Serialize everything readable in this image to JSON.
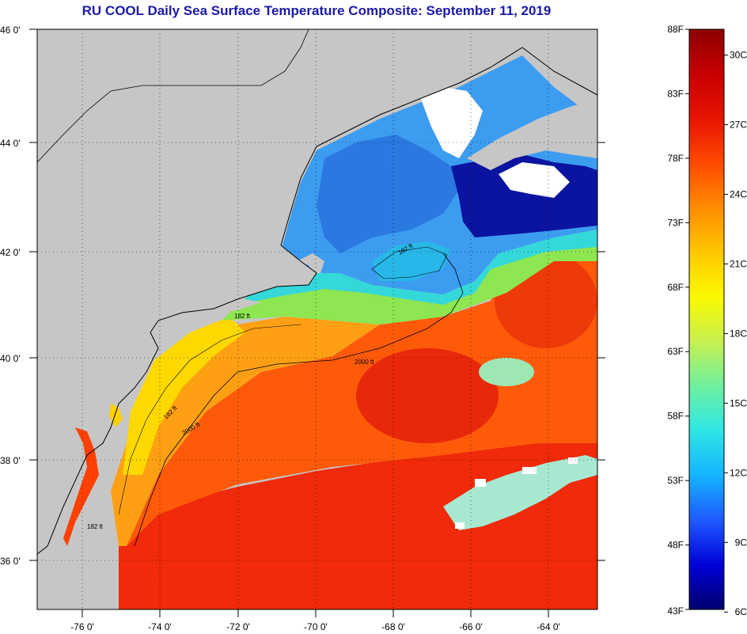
{
  "title": "RU COOL Daily Sea Surface Temperature Composite:  September 11, 2019",
  "colors": {
    "land": "#c6c6c6",
    "cloud": "#ffffff",
    "coast": "#000000",
    "title": "#1a1aa8"
  },
  "axes": {
    "lon_labels": [
      "-76 0'",
      "-74 0'",
      "-72 0'",
      "-70 0'",
      "-68 0'",
      "-66 0'",
      "-64 0'"
    ],
    "lat_labels": [
      "46 0'",
      "44 0'",
      "42 0'",
      "40 0'",
      "38 0'",
      "36 0'"
    ]
  },
  "isobaths": [
    "2000 ft",
    "2000 ft",
    "182 ft",
    "182 ft",
    "182 ft",
    "182 ft"
  ],
  "colorbar": {
    "fahrenheit": [
      "88F",
      "83F",
      "78F",
      "73F",
      "68F",
      "63F",
      "58F",
      "53F",
      "48F",
      "43F"
    ],
    "celsius": [
      "30C",
      "27C",
      "24C",
      "21C",
      "18C",
      "15C",
      "12C",
      "9C",
      "6C"
    ],
    "gradient": [
      "#00006e",
      "#0000d8",
      "#1e5aff",
      "#14b4ff",
      "#2ee6e6",
      "#6ef0a0",
      "#c8f050",
      "#fafa00",
      "#ffc800",
      "#ff8c00",
      "#ff4a00",
      "#e61400",
      "#c80000",
      "#8c0000"
    ]
  }
}
